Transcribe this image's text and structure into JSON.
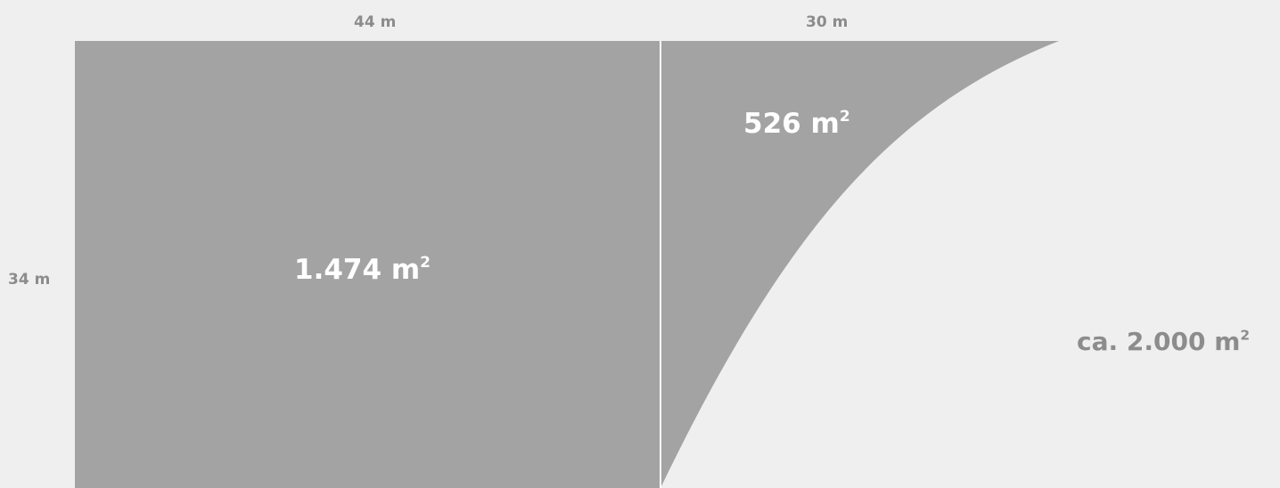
{
  "dimensions": {
    "width_left": "44 m",
    "width_right": "30 m",
    "height": "34 m"
  },
  "areas": {
    "left": {
      "value": "1.474 m",
      "exponent": "2"
    },
    "right": {
      "value": "526 m",
      "exponent": "2"
    }
  },
  "total": {
    "value": "ca. 2.000 m",
    "exponent": "2"
  },
  "colors": {
    "background": "#efefef",
    "fill": "#a3a3a3",
    "divider": "#ffffff",
    "muted_text": "#8c8c8c",
    "area_text": "#ffffff"
  }
}
